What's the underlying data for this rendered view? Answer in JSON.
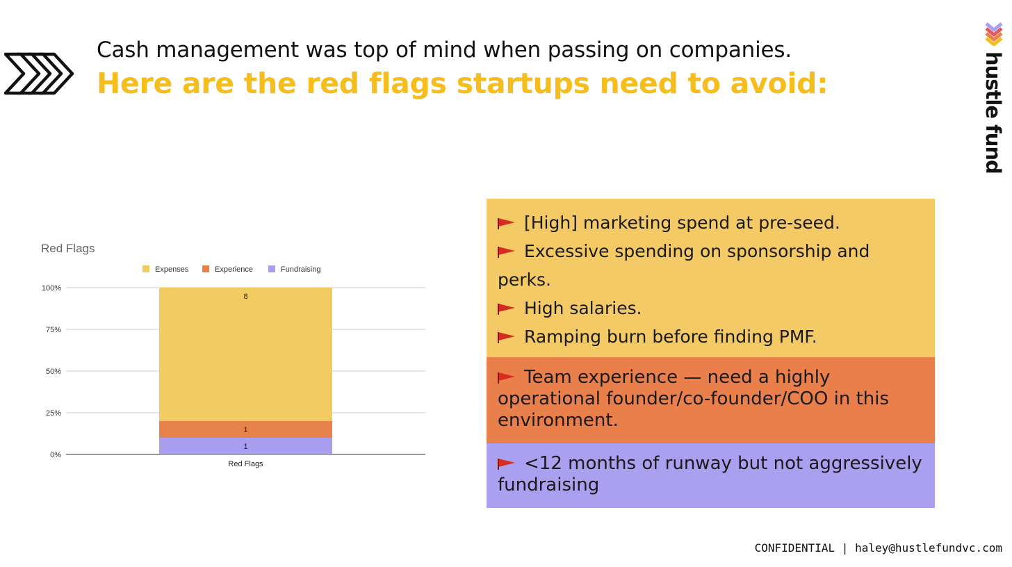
{
  "header": {
    "subtitle": "Cash management was top of mind when passing on companies.",
    "title": "Here are the red flags startups need to avoid:"
  },
  "brand": {
    "name": "hustle fund",
    "logo_icon": "hustle-fund-logo-icon",
    "arrows_icon": "chevron-arrows-icon"
  },
  "chart_data": {
    "type": "bar",
    "stacked": true,
    "normalized": true,
    "title": "Red Flags",
    "categories": [
      "Red Flags"
    ],
    "series": [
      {
        "name": "Fundraising",
        "values": [
          1
        ],
        "color": "#a99ef0"
      },
      {
        "name": "Experience",
        "values": [
          1
        ],
        "color": "#e8824d"
      },
      {
        "name": "Expenses",
        "values": [
          8
        ],
        "color": "#f2cb63"
      }
    ],
    "legend_order": [
      "Expenses",
      "Experience",
      "Fundraising"
    ],
    "yticks": [
      "0%",
      "25%",
      "50%",
      "75%",
      "100%"
    ],
    "ylim": [
      0,
      100
    ],
    "legend": "top",
    "grid": true
  },
  "cards": {
    "expenses": {
      "color": "#f3ca66",
      "items": [
        "[High] marketing spend at pre-seed.",
        "Excessive spending on sponsorship and",
        "perks.",
        "High salaries.",
        "Ramping burn before finding PMF."
      ]
    },
    "experience": {
      "color": "#e97f4a",
      "text": "Team experience — need a highly operational founder/co-founder/COO in this environment."
    },
    "fundraising": {
      "color": "#aba0ef",
      "text": "<12 months of runway but not aggressively fundraising"
    },
    "flag_icon": "red-flag-icon"
  },
  "footer": {
    "text": "CONFIDENTIAL | haley@hustlefundvc.com"
  }
}
